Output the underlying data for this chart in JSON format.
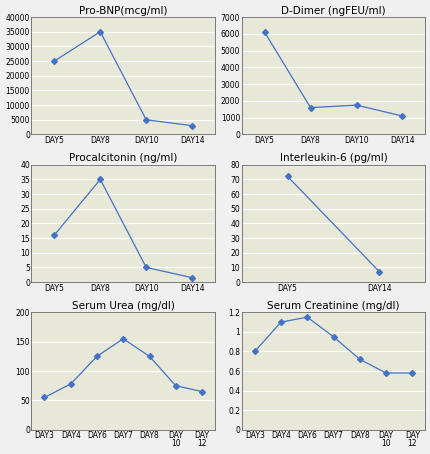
{
  "charts": [
    {
      "title": "Pro-BNP(mcg/ml)",
      "x_labels": [
        "DAY5",
        "DAY8",
        "DAY10",
        "DAY14"
      ],
      "y_values": [
        25000,
        35000,
        5000,
        3000
      ],
      "ylim": [
        0,
        40000
      ],
      "yticks": [
        0,
        5000,
        10000,
        15000,
        20000,
        25000,
        30000,
        35000,
        40000
      ]
    },
    {
      "title": "D-Dimer (ngFEU/ml)",
      "x_labels": [
        "DAY5",
        "DAY8",
        "DAY10",
        "DAY14"
      ],
      "y_values": [
        6100,
        1600,
        1750,
        1100
      ],
      "ylim": [
        0,
        7000
      ],
      "yticks": [
        0,
        1000,
        2000,
        3000,
        4000,
        5000,
        6000,
        7000
      ]
    },
    {
      "title": "Procalcitonin (ng/ml)",
      "x_labels": [
        "DAY5",
        "DAY8",
        "DAY10",
        "DAY14"
      ],
      "y_values": [
        16,
        35,
        5,
        1.5
      ],
      "ylim": [
        0,
        40
      ],
      "yticks": [
        0,
        5,
        10,
        15,
        20,
        25,
        30,
        35,
        40
      ]
    },
    {
      "title": "Interleukin-6 (pg/ml)",
      "x_labels": [
        "DAY5",
        "DAY14"
      ],
      "y_values": [
        72,
        7
      ],
      "ylim": [
        0,
        80
      ],
      "yticks": [
        0,
        10,
        20,
        30,
        40,
        50,
        60,
        70,
        80
      ]
    },
    {
      "title": "Serum Urea (mg/dl)",
      "x_labels": [
        "DAY3",
        "DAY4",
        "DAY6",
        "DAY7",
        "DAY8",
        "DAY\n10",
        "DAY\n12"
      ],
      "y_values": [
        55,
        78,
        125,
        155,
        125,
        75,
        65
      ],
      "ylim": [
        0,
        200
      ],
      "yticks": [
        0,
        50,
        100,
        150,
        200
      ]
    },
    {
      "title": "Serum Creatinine (mg/dl)",
      "x_labels": [
        "DAY3",
        "DAY4",
        "DAY6",
        "DAY7",
        "DAY8",
        "DAY\n10",
        "DAY\n12"
      ],
      "y_values": [
        0.8,
        1.1,
        1.15,
        0.95,
        0.72,
        0.58,
        0.58
      ],
      "ylim": [
        0,
        1.2
      ],
      "yticks": [
        0,
        0.2,
        0.4,
        0.6,
        0.8,
        1.0,
        1.2
      ]
    }
  ],
  "line_color": "#4472C4",
  "marker": "D",
  "marker_size": 3,
  "bg_color": "#E8E8D8",
  "plot_bg": "#E8E8D8",
  "grid_color": "#FFFFFF",
  "title_fontsize": 7.5,
  "tick_fontsize": 5.5,
  "outer_bg": "#F0F0F0"
}
